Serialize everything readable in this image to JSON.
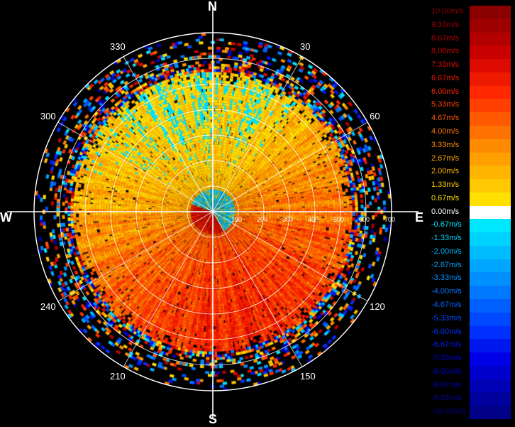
{
  "compass": {
    "north": "N",
    "south": "S",
    "east": "E",
    "west": "W"
  },
  "azimuths": [
    {
      "deg": 30,
      "label": "30"
    },
    {
      "deg": 60,
      "label": "60"
    },
    {
      "deg": 120,
      "label": "120"
    },
    {
      "deg": 150,
      "label": "150"
    },
    {
      "deg": 210,
      "label": "210"
    },
    {
      "deg": 240,
      "label": "240"
    },
    {
      "deg": 300,
      "label": "300"
    },
    {
      "deg": 330,
      "label": "330"
    }
  ],
  "range_rings": [
    "100",
    "200",
    "300",
    "400",
    "500",
    "600",
    "700"
  ],
  "legend": [
    {
      "label": "10.00m/s",
      "color": "#8b0000"
    },
    {
      "label": "9.33m/s",
      "color": "#9e0000"
    },
    {
      "label": "8.67m/s",
      "color": "#b20000"
    },
    {
      "label": "8.00m/s",
      "color": "#c80000"
    },
    {
      "label": "7.33m/s",
      "color": "#dc0a00"
    },
    {
      "label": "6.67m/s",
      "color": "#ee1a00"
    },
    {
      "label": "6.00m/s",
      "color": "#ff2800"
    },
    {
      "label": "5.33m/s",
      "color": "#ff4000"
    },
    {
      "label": "4.67m/s",
      "color": "#ff5a00"
    },
    {
      "label": "4.00m/s",
      "color": "#ff7200"
    },
    {
      "label": "3.33m/s",
      "color": "#ff8c00"
    },
    {
      "label": "2.67m/s",
      "color": "#ffa000"
    },
    {
      "label": "2.00m/s",
      "color": "#ffb400"
    },
    {
      "label": "1.33m/s",
      "color": "#ffc800"
    },
    {
      "label": "0.67m/s",
      "color": "#ffe000"
    },
    {
      "label": "0.00m/s",
      "color": "#ffffff"
    },
    {
      "label": "-0.67m/s",
      "color": "#00e8ff"
    },
    {
      "label": "-1.33m/s",
      "color": "#00d2ff"
    },
    {
      "label": "-2.00m/s",
      "color": "#00bcff"
    },
    {
      "label": "-2.67m/s",
      "color": "#00a6ff"
    },
    {
      "label": "-3.33m/s",
      "color": "#0090ff"
    },
    {
      "label": "-4.00m/s",
      "color": "#0078ff"
    },
    {
      "label": "-4.67m/s",
      "color": "#0060ff"
    },
    {
      "label": "-5.33m/s",
      "color": "#0048ff"
    },
    {
      "label": "-6.00m/s",
      "color": "#0030ff"
    },
    {
      "label": "-6.67m/s",
      "color": "#0018f0"
    },
    {
      "label": "-7.33m/s",
      "color": "#0000e6"
    },
    {
      "label": "-8.00m/s",
      "color": "#0000cc"
    },
    {
      "label": "-8.67m/s",
      "color": "#0000b4"
    },
    {
      "label": "-9.33m/s",
      "color": "#00009c"
    },
    {
      "label": "-10.00m/s",
      "color": "#000088"
    }
  ]
}
